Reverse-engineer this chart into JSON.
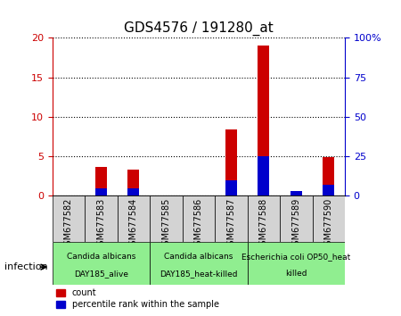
{
  "title": "GDS4576 / 191280_at",
  "samples": [
    "GSM677582",
    "GSM677583",
    "GSM677584",
    "GSM677585",
    "GSM677586",
    "GSM677587",
    "GSM677588",
    "GSM677589",
    "GSM677590"
  ],
  "counts": [
    0,
    3.7,
    3.3,
    0,
    0,
    8.4,
    19.0,
    0.6,
    4.9
  ],
  "percentile_ranks": [
    0,
    5,
    5,
    0,
    0,
    10,
    25,
    3,
    7
  ],
  "ylim_left": [
    0,
    20
  ],
  "ylim_right": [
    0,
    100
  ],
  "yticks_left": [
    0,
    5,
    10,
    15,
    20
  ],
  "yticks_right": [
    0,
    25,
    50,
    75,
    100
  ],
  "yticklabels_right": [
    "0",
    "25",
    "50",
    "75",
    "100%"
  ],
  "count_color": "#cc0000",
  "percentile_color": "#0000cc",
  "bar_width": 0.35,
  "groups": [
    {
      "label": "Candida albicans\nDAY185_alive",
      "start": 0,
      "end": 3,
      "color": "#90ee90"
    },
    {
      "label": "Candida albicans\nDAY185_heat-killed",
      "start": 3,
      "end": 6,
      "color": "#90ee90"
    },
    {
      "label": "Escherichia coli OP50_heat\nkilled",
      "start": 6,
      "end": 9,
      "color": "#90ee90"
    }
  ],
  "infection_label": "infection",
  "legend_count": "count",
  "legend_percentile": "percentile rank within the sample",
  "xlabel_color": "#cc0000",
  "right_axis_color": "#0000cc",
  "tick_area_color": "#d3d3d3",
  "figure_bg": "#ffffff"
}
